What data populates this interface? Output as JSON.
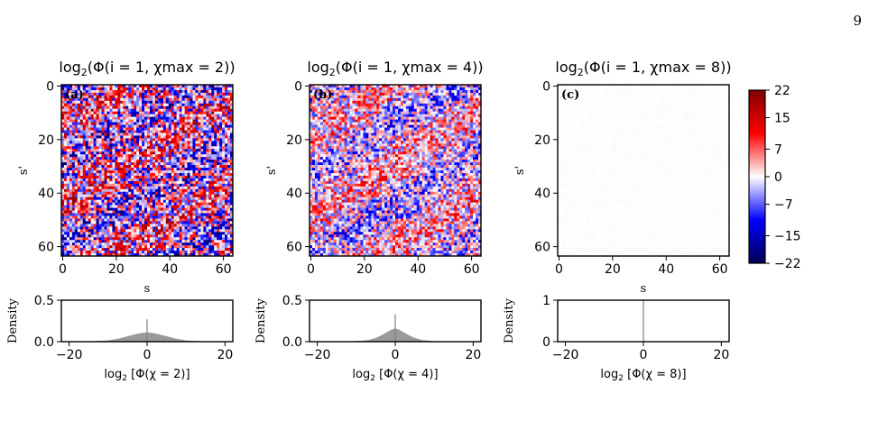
{
  "page": {
    "number": "9"
  },
  "colorbar": {
    "ticks": [
      22,
      15,
      7,
      0,
      -7,
      -15,
      -22
    ],
    "tick_labels": [
      "22",
      "15",
      "7",
      "0",
      "−7",
      "−15",
      "−22"
    ],
    "range": [
      -22,
      22
    ],
    "colormap": "seismic"
  },
  "chart_data": [
    {
      "type": "heatmap",
      "panel_label": "(a)",
      "title_pre": "log",
      "title_sub": "2",
      "title_post": "(Φ(i = 1, χmax = 2))",
      "xlabel": "s",
      "ylabel": "s'",
      "xlim": [
        0,
        63
      ],
      "ylim": [
        63,
        0
      ],
      "xticks": [
        0,
        20,
        40,
        60
      ],
      "yticks": [
        0,
        20,
        40,
        60
      ],
      "grid_size": 64,
      "value_range": [
        -22,
        22
      ],
      "amplitude": 0.55,
      "seed": 11,
      "note_values": "64x64 grid of log2 values, predominantly red/blue mixed, saturation moderate"
    },
    {
      "type": "heatmap",
      "panel_label": "(b)",
      "title_pre": "log",
      "title_sub": "2",
      "title_post": "(Φ(i = 1, χmax = 4))",
      "xlabel": "",
      "ylabel": "s'",
      "xlim": [
        0,
        63
      ],
      "ylim": [
        63,
        0
      ],
      "xticks": [
        0,
        20,
        40,
        60
      ],
      "yticks": [
        0,
        20,
        40,
        60
      ],
      "grid_size": 64,
      "value_range": [
        -22,
        22
      ],
      "amplitude": 0.38,
      "seed": 29
    },
    {
      "type": "heatmap",
      "panel_label": "(c)",
      "title_pre": "log",
      "title_sub": "2",
      "title_post": "(Φ(i = 1, χmax = 8))",
      "xlabel": "s",
      "ylabel": "s'",
      "xlim": [
        0,
        63
      ],
      "ylim": [
        63,
        0
      ],
      "xticks": [
        0,
        20,
        40,
        60
      ],
      "yticks": [
        0,
        20,
        40,
        60
      ],
      "grid_size": 64,
      "value_range": [
        -22,
        22
      ],
      "amplitude": 0.0,
      "seed": 5
    },
    {
      "type": "area",
      "xlabel_pre": "log",
      "xlabel_sub": "2",
      "xlabel_post": "[Φ(χ = 2)]",
      "ylabel": "Density",
      "xlim": [
        -22,
        22
      ],
      "ylim": [
        0,
        0.5
      ],
      "xticks": [
        -20,
        0,
        20
      ],
      "yticks": [
        0.0,
        0.5
      ],
      "ytick_labels": [
        "0.0",
        "0.5"
      ],
      "spike": {
        "x": 0,
        "y": 0.27
      },
      "x": [
        -22,
        -15,
        -10,
        -7,
        -5,
        -3,
        -2,
        -1,
        0,
        1,
        2,
        3,
        5,
        7,
        10,
        15,
        22
      ],
      "y": [
        0.0,
        0.003,
        0.015,
        0.04,
        0.065,
        0.09,
        0.1,
        0.108,
        0.112,
        0.108,
        0.1,
        0.09,
        0.065,
        0.04,
        0.015,
        0.003,
        0.0
      ]
    },
    {
      "type": "area",
      "xlabel_pre": "log",
      "xlabel_sub": "2",
      "xlabel_post": "[Φ(χ = 4)]",
      "ylabel": "Density",
      "xlim": [
        -22,
        22
      ],
      "ylim": [
        0,
        0.5
      ],
      "xticks": [
        -20,
        0,
        20
      ],
      "yticks": [
        0.0,
        0.5
      ],
      "ytick_labels": [
        "0.0",
        "0.5"
      ],
      "spike": {
        "x": 0,
        "y": 0.33
      },
      "x": [
        -22,
        -15,
        -10,
        -7,
        -5,
        -3,
        -2,
        -1,
        0,
        1,
        2,
        3,
        5,
        7,
        10,
        15,
        22
      ],
      "y": [
        0.0,
        0.0,
        0.006,
        0.02,
        0.045,
        0.09,
        0.12,
        0.145,
        0.16,
        0.145,
        0.12,
        0.09,
        0.045,
        0.02,
        0.006,
        0.0,
        0.0
      ]
    },
    {
      "type": "area",
      "xlabel_pre": "log",
      "xlabel_sub": "2",
      "xlabel_post": "[Φ(χ = 8)]",
      "ylabel": "Density",
      "xlim": [
        -22,
        22
      ],
      "ylim": [
        0,
        1
      ],
      "xticks": [
        -20,
        0,
        20
      ],
      "yticks": [
        0,
        1
      ],
      "ytick_labels": [
        "0",
        "1"
      ],
      "spike": {
        "x": 0,
        "y": 1.0
      },
      "x": [],
      "y": []
    }
  ]
}
